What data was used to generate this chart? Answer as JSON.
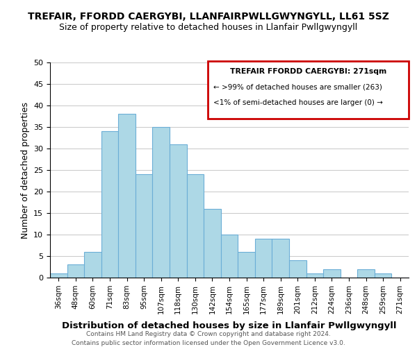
{
  "title": "TREFAIR, FFORDD CAERGYBI, LLANFAIRPWLLGWYNGYLL, LL61 5SZ",
  "subtitle": "Size of property relative to detached houses in Llanfair Pwllgwyngyll",
  "xlabel": "Distribution of detached houses by size in Llanfair Pwllgwyngyll",
  "ylabel": "Number of detached properties",
  "bin_labels": [
    "36sqm",
    "48sqm",
    "60sqm",
    "71sqm",
    "83sqm",
    "95sqm",
    "107sqm",
    "118sqm",
    "130sqm",
    "142sqm",
    "154sqm",
    "165sqm",
    "177sqm",
    "189sqm",
    "201sqm",
    "212sqm",
    "224sqm",
    "236sqm",
    "248sqm",
    "259sqm",
    "271sqm"
  ],
  "bar_heights": [
    1,
    3,
    6,
    34,
    38,
    24,
    35,
    31,
    24,
    16,
    10,
    6,
    9,
    9,
    4,
    1,
    2,
    0,
    2,
    1,
    0
  ],
  "bar_color": "#add8e6",
  "bar_edge_color": "#6baed6",
  "ylim": [
    0,
    50
  ],
  "yticks": [
    0,
    5,
    10,
    15,
    20,
    25,
    30,
    35,
    40,
    45,
    50
  ],
  "legend_title": "TREFAIR FFORDD CAERGYBI: 271sqm",
  "legend_line1": "← >99% of detached houses are smaller (263)",
  "legend_line2": "<1% of semi-detached houses are larger (0) →",
  "legend_box_color": "#ffffff",
  "legend_box_edge_color": "#cc0000",
  "footer_line1": "Contains HM Land Registry data © Crown copyright and database right 2024.",
  "footer_line2": "Contains public sector information licensed under the Open Government Licence v3.0.",
  "background_color": "#ffffff",
  "grid_color": "#cccccc"
}
